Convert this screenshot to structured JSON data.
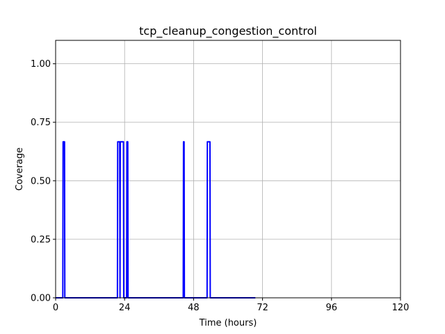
{
  "chart_data": {
    "type": "line",
    "title": "tcp_cleanup_congestion_control",
    "xlabel": "Time (hours)",
    "ylabel": "Coverage",
    "xlim": [
      0,
      120
    ],
    "ylim": [
      0,
      1.1
    ],
    "x_ticks": [
      0,
      24,
      48,
      72,
      96,
      120
    ],
    "y_ticks": [
      0.0,
      0.25,
      0.5,
      0.75,
      1.0
    ],
    "x_tick_labels": [
      "0",
      "24",
      "48",
      "72",
      "96",
      "120"
    ],
    "y_tick_labels": [
      "0.00",
      "0.25",
      "0.50",
      "0.75",
      "1.00"
    ],
    "grid": true,
    "series": [
      {
        "color": "#0000ff",
        "x": [
          0,
          2.5,
          2.6,
          3.1,
          3.2,
          21.5,
          21.6,
          22.3,
          22.4,
          22.5,
          23.6,
          23.7,
          24.7,
          24.8,
          25.1,
          25.2,
          44.4,
          44.5,
          44.7,
          44.8,
          52.7,
          52.8,
          53.1,
          53.3,
          53.7,
          53.8,
          69.5
        ],
        "y": [
          0,
          0,
          0.6667,
          0.6667,
          0,
          0,
          0.6667,
          0.6667,
          0,
          0.6667,
          0.6667,
          0,
          0,
          0.6667,
          0.6667,
          0,
          0,
          0.6667,
          0.6667,
          0,
          0,
          0.6667,
          0.6667,
          0.6667,
          0.6667,
          0,
          0
        ]
      }
    ]
  }
}
